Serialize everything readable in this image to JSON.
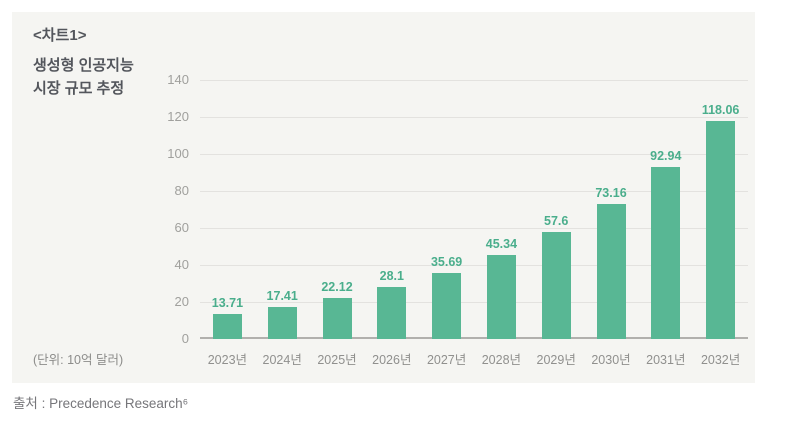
{
  "card": {
    "background": "#f5f5f2"
  },
  "title": {
    "lines": [
      "<차트1>",
      "생성형 인공지능",
      "시장 규모 추정"
    ]
  },
  "unit_note": "(단위: 10억 달러)",
  "source": "출처 : Precedence Research⁶",
  "chart_data": {
    "type": "bar",
    "title": "생성형 인공지능 시장 규모 추정",
    "categories": [
      "2023년",
      "2024년",
      "2025년",
      "2026년",
      "2027년",
      "2028년",
      "2029년",
      "2030년",
      "2031년",
      "2032년"
    ],
    "values": [
      13.71,
      17.41,
      22.12,
      28.1,
      35.69,
      45.34,
      57.6,
      73.16,
      92.94,
      118.06
    ],
    "value_labels": [
      "13.71",
      "17.41",
      "22.12",
      "28.1",
      "35.69",
      "45.34",
      "57.6",
      "73.16",
      "92.94",
      "118.06"
    ],
    "xlabel": "",
    "ylabel": "",
    "unit": "10억 달러",
    "ylim": [
      0,
      140
    ],
    "yticks": [
      0,
      20,
      40,
      60,
      80,
      100,
      120,
      140
    ],
    "grid": true,
    "legend": "none",
    "bar_color": "#58b794",
    "value_label_color": "#4aae8c"
  }
}
